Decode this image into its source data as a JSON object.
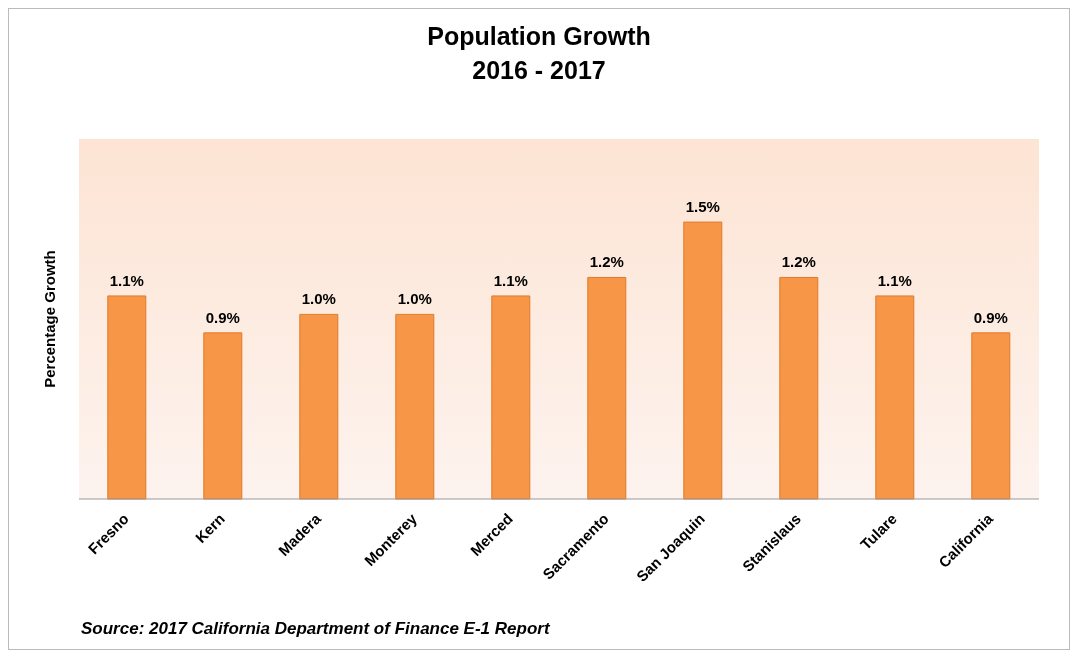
{
  "chart_data": {
    "type": "bar",
    "title": "Population Growth",
    "subtitle": "2016 - 2017",
    "ylabel": "Percentage Growth",
    "categories": [
      "Fresno",
      "Kern",
      "Madera",
      "Monterey",
      "Merced",
      "Sacramento",
      "San Joaquin",
      "Stanislaus",
      "Tulare",
      "California"
    ],
    "values": [
      1.1,
      0.9,
      1.0,
      1.0,
      1.1,
      1.2,
      1.5,
      1.2,
      1.1,
      0.9
    ],
    "value_labels": [
      "1.1%",
      "0.9%",
      "1.0%",
      "1.0%",
      "1.1%",
      "1.2%",
      "1.5%",
      "1.2%",
      "1.1%",
      "0.9%"
    ],
    "color": "#f79646",
    "grid": false,
    "annotations": [
      "Source: 2017 California Department of Finance E-1 Report"
    ]
  }
}
